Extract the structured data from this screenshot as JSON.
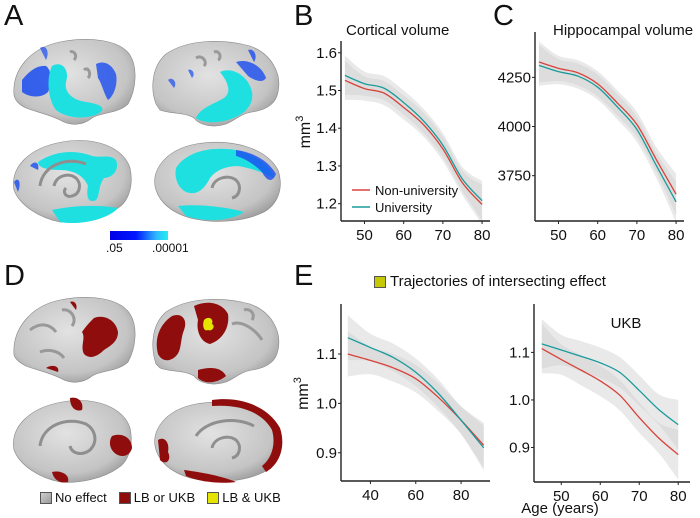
{
  "panels": {
    "A": {
      "letter": "A",
      "colorbar": {
        "min_label": ".05",
        "max_label": ".00001",
        "colors": [
          "#0000e6",
          "#0018ff",
          "#2fb8ff",
          "#22f0ee"
        ]
      },
      "views": [
        "left-lateral",
        "right-lateral",
        "left-medial",
        "right-medial"
      ],
      "effect_color": "#1fe0e0",
      "weak_effect_color": "#1a4cf0"
    },
    "B": {
      "letter": "B"
    },
    "C": {
      "letter": "C"
    },
    "D": {
      "letter": "D",
      "legend": [
        {
          "label": "No effect",
          "color": "#9a9a9a"
        },
        {
          "label": "LB or UKB",
          "color": "#8f0d0d"
        },
        {
          "label": "LB & UKB",
          "color": "#e4e400"
        }
      ],
      "views": [
        "left-lateral",
        "right-lateral",
        "left-medial",
        "right-medial"
      ]
    },
    "E": {
      "letter": "E",
      "header": "Trajectories of intersecting effect",
      "header_swatch_color": "#c8c800",
      "xlabel": "Age (years)"
    }
  },
  "colors": {
    "non_university": "#d9423a",
    "university": "#1a9b9b",
    "ci_band": "#d4d4d4"
  },
  "chart_data": [
    {
      "id": "B",
      "type": "line",
      "title": "Cortical volume",
      "xlabel": "",
      "ylabel": "mm3",
      "xlim": [
        44,
        81
      ],
      "ylim": [
        1.17,
        1.61
      ],
      "xticks": [
        50,
        60,
        70,
        80
      ],
      "yticks": [
        1.2,
        1.3,
        1.4,
        1.5,
        1.6
      ],
      "ytick_labels": [
        "1.2",
        "1.3",
        "1.4",
        "1.5",
        "1.6"
      ],
      "legend": {
        "placement": "bottom-left",
        "entries": [
          "Non-university",
          "University"
        ]
      },
      "x": [
        45,
        50,
        55,
        60,
        65,
        70,
        75,
        80
      ],
      "series": [
        {
          "name": "Non-university",
          "values": [
            1.527,
            1.505,
            1.493,
            1.455,
            1.41,
            1.345,
            1.255,
            1.198
          ],
          "ci_halfwidth": 0.04
        },
        {
          "name": "University",
          "values": [
            1.54,
            1.518,
            1.506,
            1.468,
            1.42,
            1.355,
            1.265,
            1.208
          ],
          "ci_halfwidth": 0.04
        }
      ]
    },
    {
      "id": "C",
      "type": "line",
      "title": "Hippocampal volume",
      "xlabel": "",
      "ylabel": "",
      "xlim": [
        44,
        81
      ],
      "ylim": [
        3550,
        4440
      ],
      "xticks": [
        50,
        60,
        70,
        80
      ],
      "yticks": [
        3750,
        4000,
        4250
      ],
      "ytick_labels": [
        "3750",
        "4000",
        "4250"
      ],
      "x": [
        45,
        50,
        55,
        60,
        65,
        70,
        75,
        80
      ],
      "series": [
        {
          "name": "Non-university",
          "values": [
            4328,
            4296,
            4273,
            4217,
            4120,
            4010,
            3830,
            3656
          ],
          "ci_halfwidth": 80
        },
        {
          "name": "University",
          "values": [
            4311,
            4279,
            4256,
            4200,
            4100,
            3985,
            3800,
            3617
          ],
          "ci_halfwidth": 80
        }
      ]
    },
    {
      "id": "E-left",
      "type": "line",
      "title": "",
      "xlabel": "",
      "ylabel": "mm3",
      "xlim": [
        27,
        91
      ],
      "ylim": [
        0.855,
        1.185
      ],
      "xticks": [
        40,
        60,
        80
      ],
      "yticks": [
        0.9,
        1.0,
        1.1
      ],
      "ytick_labels": [
        "0.9",
        "1.0",
        "1.1"
      ],
      "x": [
        30,
        40,
        50,
        60,
        70,
        80,
        90
      ],
      "series": [
        {
          "name": "Non-university",
          "values": [
            1.1,
            1.087,
            1.072,
            1.05,
            1.012,
            0.966,
            0.915
          ],
          "ci_halfwidth": 0.035
        },
        {
          "name": "University",
          "values": [
            1.133,
            1.113,
            1.093,
            1.063,
            1.02,
            0.966,
            0.91
          ],
          "ci_halfwidth": 0.035
        }
      ]
    },
    {
      "id": "E-right",
      "type": "line",
      "title": "UKB",
      "xlabel": "Age (years)",
      "ylabel": "",
      "xlim": [
        43,
        82
      ],
      "ylim": [
        0.84,
        1.185
      ],
      "xticks": [
        50,
        60,
        70,
        80
      ],
      "yticks": [
        0.9,
        1.0,
        1.1
      ],
      "ytick_labels": [
        "0.9",
        "1.0",
        "1.1"
      ],
      "x": [
        45,
        50,
        55,
        60,
        65,
        70,
        75,
        80
      ],
      "series": [
        {
          "name": "Non-university",
          "values": [
            1.108,
            1.085,
            1.063,
            1.04,
            1.01,
            0.963,
            0.92,
            0.885
          ],
          "ci_halfwidth": 0.04
        },
        {
          "name": "University",
          "values": [
            1.118,
            1.105,
            1.092,
            1.078,
            1.058,
            1.02,
            0.98,
            0.948
          ],
          "ci_halfwidth": 0.04
        }
      ]
    }
  ]
}
